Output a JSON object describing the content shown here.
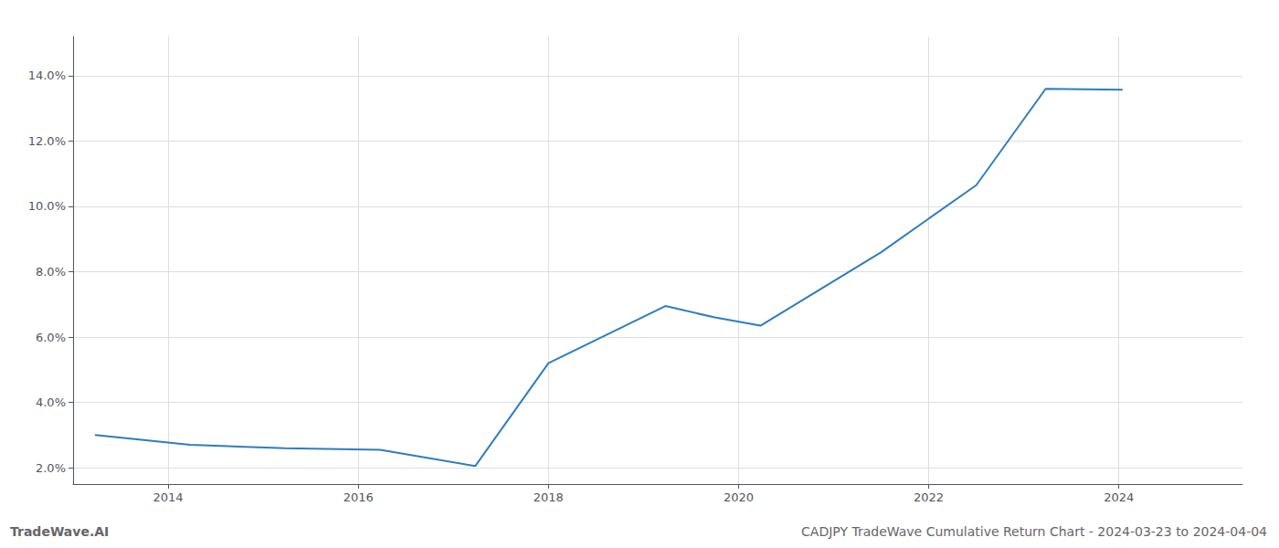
{
  "chart_data": {
    "type": "line",
    "title": "CADJPY TradeWave Cumulative Return Chart - 2024-03-23 to 2024-04-04",
    "annotations": [
      "TradeWave.AI"
    ],
    "x": [
      2013.23,
      2014.23,
      2015.23,
      2016.23,
      2017.23,
      2018.0,
      2019.23,
      2019.75,
      2020.23,
      2021.5,
      2022.5,
      2023.23,
      2024.04
    ],
    "values": [
      3.0,
      2.7,
      2.6,
      2.55,
      2.05,
      5.2,
      6.95,
      6.6,
      6.35,
      8.6,
      10.65,
      13.6,
      13.57
    ],
    "color": "#2e7dbf",
    "xlim": [
      2013.0,
      2025.3
    ],
    "ylim": [
      1.5,
      15.2
    ],
    "xticks": [
      2014,
      2016,
      2018,
      2020,
      2022,
      2024
    ],
    "yticks": [
      {
        "value": 2.0,
        "label": "2.0%"
      },
      {
        "value": 4.0,
        "label": "4.0%"
      },
      {
        "value": 6.0,
        "label": "6.0%"
      },
      {
        "value": 8.0,
        "label": "8.0%"
      },
      {
        "value": 10.0,
        "label": "10.0%"
      },
      {
        "value": 12.0,
        "label": "12.0%"
      },
      {
        "value": 14.0,
        "label": "14.0%"
      }
    ],
    "grid": true
  }
}
